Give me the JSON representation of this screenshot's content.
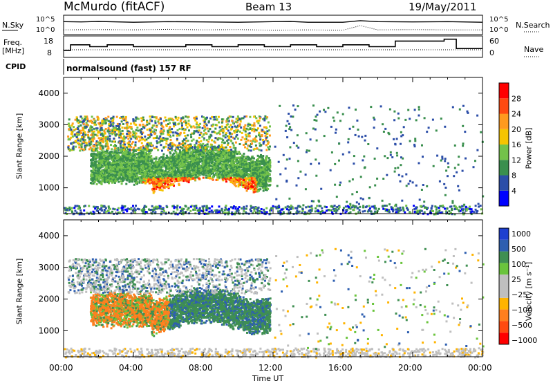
{
  "header": {
    "station": "McMurdo (fitACF)",
    "beam": "Beam 13",
    "date": "19/May/2011"
  },
  "top_panels": {
    "nsky_label": "N.Sky",
    "nsearch_label": "N.Search",
    "sky_ticks": [
      "10^5",
      "10^0"
    ],
    "search_ticks": [
      "10^5",
      "10^0"
    ],
    "freq_label_1": "Freq.",
    "freq_label_2": "[MHz]",
    "freq_ticks": [
      "18",
      "8"
    ],
    "nave_label": "Nave",
    "nave_ticks": [
      "60",
      "0"
    ],
    "cpid_label": "CPID",
    "cpid_text": "normalsound (fast) 157 RF"
  },
  "x_axis": {
    "label": "Time UT",
    "ticks": [
      "00:00",
      "04:00",
      "08:00",
      "12:00",
      "16:00",
      "20:00",
      "00:00"
    ]
  },
  "colors": {
    "power_scale": [
      "#0000ff",
      "#2c4ea8",
      "#3a8f4e",
      "#73c24a",
      "#f5c400",
      "#ff9a1e",
      "#ff4a10",
      "#ff0000"
    ],
    "velocity_scale": [
      "#ff0000",
      "#ff4a10",
      "#ff7f1e",
      "#ffb400",
      "#bfbfbf",
      "#bfbfbf",
      "#6ac43c",
      "#3f8f52",
      "#2e5fb0",
      "#1e3fd0"
    ]
  },
  "chart_data": [
    {
      "type": "line",
      "title": "McMurdo (fitACF)",
      "xlabel": "Time UT",
      "ylabel": "N.Sky",
      "y2label": "N.Search",
      "yscale": "log",
      "ylim": [
        1,
        100000
      ],
      "xlim": [
        0,
        24
      ],
      "series": [
        {
          "name": "N.Sky",
          "x": [
            0,
            1,
            2,
            4,
            6,
            8,
            10,
            12,
            13,
            14,
            16,
            17,
            18,
            20,
            22,
            24
          ],
          "values": [
            3000,
            2500,
            3500,
            2000,
            3000,
            2500,
            2000,
            3000,
            3500,
            2000,
            2000,
            6000,
            3000,
            2500,
            3000,
            2000
          ]
        },
        {
          "name": "N.Search",
          "x": [
            0,
            2,
            4,
            6,
            8,
            10,
            12,
            14,
            16,
            17,
            18,
            20,
            22,
            24
          ],
          "values": [
            10,
            12,
            10,
            15,
            10,
            12,
            8,
            10,
            8,
            200,
            10,
            12,
            10,
            10
          ]
        }
      ]
    },
    {
      "type": "line",
      "ylabel": "Freq. [MHz]",
      "y2label": "Nave",
      "ylim": [
        8,
        18
      ],
      "y2lim": [
        0,
        60
      ],
      "xlim": [
        0,
        24
      ],
      "series": [
        {
          "name": "Freq.",
          "x": [
            0,
            0.4,
            1.5,
            2.5,
            4,
            5.5,
            7,
            8.5,
            10,
            11.5,
            13,
            14.5,
            16,
            17.5,
            19,
            20.5,
            21.8,
            22.5,
            24
          ],
          "values": [
            11,
            14,
            13,
            14,
            13,
            13,
            14,
            13,
            14,
            13,
            14,
            13,
            14,
            13,
            16,
            16,
            17,
            12,
            12
          ]
        },
        {
          "name": "Nave",
          "x": [
            0,
            4,
            8,
            12,
            16,
            20,
            24
          ],
          "values": [
            20,
            20,
            20,
            20,
            20,
            20,
            20
          ]
        }
      ]
    },
    {
      "type": "heatmap",
      "title": "Power",
      "xlabel": "Time UT",
      "ylabel": "Slant Range [km]",
      "colorbar_label": "Power [dB]",
      "colorbar_ticks": [
        4,
        8,
        12,
        16,
        20,
        24,
        28
      ],
      "clim": [
        0,
        32
      ],
      "xlim": [
        0,
        24
      ],
      "ylim": [
        180,
        4500
      ],
      "yticks": [
        1000,
        2000,
        3000,
        4000
      ]
    },
    {
      "type": "heatmap",
      "title": "Velocity",
      "xlabel": "Time UT",
      "ylabel": "Slant Range [km]",
      "colorbar_label": "Velocity [m s⁻¹]",
      "colorbar_ticks": [
        "1000",
        "500",
        "100",
        "25",
        "−25",
        "−100",
        "−500",
        "−1000"
      ],
      "xlim": [
        0,
        24
      ],
      "ylim": [
        180,
        4500
      ],
      "yticks": [
        1000,
        2000,
        3000,
        4000
      ]
    }
  ]
}
